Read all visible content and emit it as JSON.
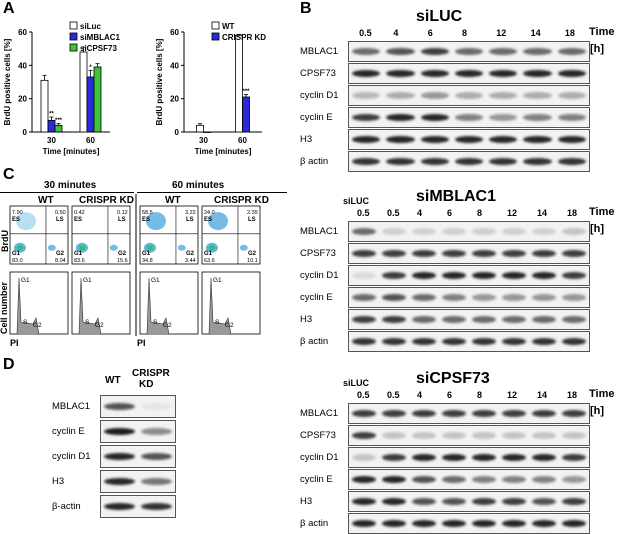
{
  "panels": {
    "A": "A",
    "B": "B",
    "C": "C",
    "D": "D"
  },
  "panelA": {
    "chart_data": [
      {
        "type": "bar",
        "ylabel": "BrdU positive cells [%]",
        "xlabel": "Time [minutes]",
        "ylim": [
          0,
          60
        ],
        "yticks": [
          "0",
          "20",
          "40",
          "60"
        ],
        "categories": [
          "30",
          "60"
        ],
        "legend_position": "top-right",
        "series": [
          {
            "name": "siLuc",
            "color": "#ffffff",
            "values": [
              31,
              48
            ],
            "errors": [
              3,
              3
            ],
            "sig": [
              "",
              ""
            ]
          },
          {
            "name": "siMBLAC1",
            "color": "#2a2ad8",
            "values": [
              7,
              33
            ],
            "errors": [
              2,
              4
            ],
            "sig": [
              "**",
              "*"
            ]
          },
          {
            "name": "siCPSF73",
            "color": "#3cc43c",
            "values": [
              4,
              39
            ],
            "errors": [
              1,
              2
            ],
            "sig": [
              "***",
              ""
            ]
          }
        ]
      },
      {
        "type": "bar",
        "ylabel": "BrdU positive cells [%]",
        "xlabel": "Time [minutes]",
        "ylim": [
          0,
          60
        ],
        "yticks": [
          "0",
          "20",
          "40",
          "60"
        ],
        "categories": [
          "30",
          "60"
        ],
        "legend_position": "top-right",
        "series": [
          {
            "name": "WT",
            "color": "#ffffff",
            "values": [
              4,
              58
            ],
            "errors": [
              1,
              0.5
            ],
            "sig": [
              "",
              ""
            ]
          },
          {
            "name": "CRISPR KD",
            "color": "#2a2ad8",
            "values": [
              0,
              21
            ],
            "errors": [
              0,
              1.5
            ],
            "sig": [
              "",
              "***"
            ]
          }
        ]
      }
    ]
  },
  "panelB": {
    "time_label": "Time",
    "unit_label": "[h]",
    "blots": [
      {
        "title": "siLUC",
        "siluc_label": "",
        "timepoints": [
          "0.5",
          "4",
          "6",
          "8",
          "12",
          "14",
          "18"
        ],
        "rows": [
          "MBLAC1",
          "CPSF73",
          "cyclin D1",
          "cyclin E",
          "H3",
          "β actin"
        ]
      },
      {
        "title": "siMBLAC1",
        "siluc_label": "siLUC",
        "timepoints": [
          "0.5",
          "0.5",
          "4",
          "6",
          "8",
          "12",
          "14",
          "18"
        ],
        "rows": [
          "MBLAC1",
          "CPSF73",
          "cyclin D1",
          "cyclin E",
          "H3",
          "β actin"
        ]
      },
      {
        "title": "siCPSF73",
        "siluc_label": "siLUC",
        "timepoints": [
          "0.5",
          "0.5",
          "4",
          "6",
          "8",
          "12",
          "14",
          "18"
        ],
        "rows": [
          "MBLAC1",
          "CPSF73",
          "cyclin D1",
          "cyclin E",
          "H3",
          "β actin"
        ]
      }
    ]
  },
  "panelC": {
    "group_30": "30 minutes",
    "group_60": "60 minutes",
    "col_wt": "WT",
    "col_ko": "CRISPR KD",
    "ylabel_top": "BrdU",
    "ylabel_bottom": "Cell number",
    "xlabel": "PI",
    "gate_es": "ES",
    "gate_ls": "LS",
    "gate_g1": "G1",
    "gate_g2": "G2",
    "hist_g1": "G1",
    "hist_s": "S",
    "hist_g2": "G2",
    "plots": [
      {
        "es": "7.90",
        "ls": "0.50",
        "g1": "83.0",
        "g2": "8.04"
      },
      {
        "es": "0.42",
        "ls": "0.12",
        "g1": "83.6",
        "g2": "15.6"
      },
      {
        "es": "58.5",
        "ls": "3.22",
        "g1": "34.8",
        "g2": "3.44"
      },
      {
        "es": "24.0",
        "ls": "2.39",
        "g1": "63.6",
        "g2": "10.1"
      }
    ]
  },
  "panelD": {
    "col_wt": "WT",
    "col_ko_1": "CRISPR",
    "col_ko_2": "KD",
    "rows": [
      "MBLAC1",
      "cyclin E",
      "cyclin D1",
      "H3",
      "β-actin"
    ]
  }
}
